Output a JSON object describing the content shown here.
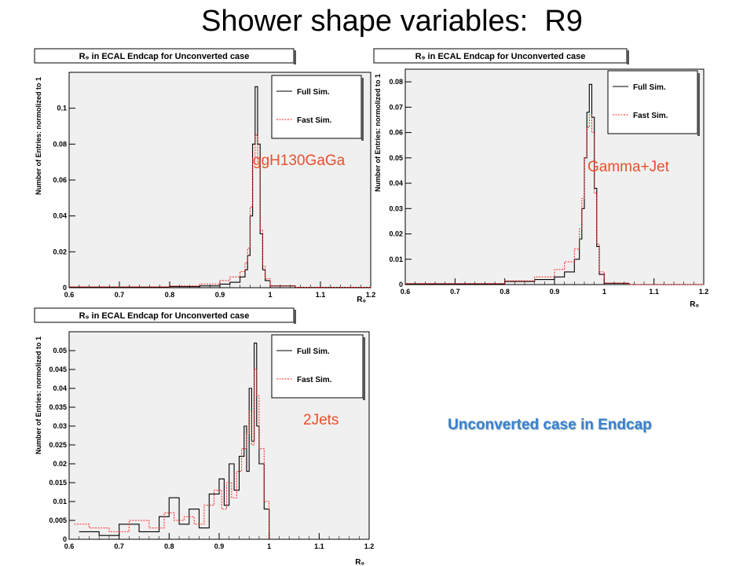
{
  "slide": {
    "title": "Shower shape variables:  R9",
    "caption": "Unconverted case in Endcap"
  },
  "colors": {
    "full": "#000000",
    "fast": "#ff2020",
    "frame": "#f0f0f0",
    "accent_label": "#e8502a",
    "caption": "#3a7fd1"
  },
  "chart_data": [
    {
      "type": "line",
      "id": "p1",
      "title": "R₉ in ECAL Endcap for Unconverted case",
      "label": "ggH130GaGa",
      "ylabel": "Number of Entries: normolized to 1",
      "xlabel": "R₉",
      "xlim": [
        0.6,
        1.2
      ],
      "ylim": [
        0,
        0.12
      ],
      "yticks": [
        0,
        0.02,
        0.04,
        0.06,
        0.08,
        0.1
      ],
      "ytick_labels": [
        "0",
        "0.02",
        "0.04",
        "0.06",
        "0.08",
        "0.1"
      ],
      "xticks": [
        0.6,
        0.7,
        0.8,
        0.9,
        1.0,
        1.1,
        1.2
      ],
      "xtick_labels": [
        "0.6",
        "0.7",
        "0.8",
        "0.9",
        "1",
        "1.1",
        "1.2"
      ],
      "legend": [
        "Full Sim.",
        "Fast Sim."
      ],
      "series": [
        {
          "name": "Full Sim.",
          "x": [
            0.6,
            0.8,
            0.86,
            0.9,
            0.92,
            0.94,
            0.95,
            0.955,
            0.96,
            0.965,
            0.97,
            0.975,
            0.98,
            0.985,
            0.99,
            1.0,
            1.05,
            1.2
          ],
          "y": [
            0.0003,
            0.0006,
            0.001,
            0.002,
            0.003,
            0.006,
            0.01,
            0.018,
            0.04,
            0.08,
            0.112,
            0.08,
            0.03,
            0.01,
            0.004,
            0.001,
            0.0002,
            0.0
          ]
        },
        {
          "name": "Fast Sim.",
          "x": [
            0.6,
            0.8,
            0.86,
            0.9,
            0.92,
            0.94,
            0.95,
            0.955,
            0.96,
            0.965,
            0.97,
            0.975,
            0.98,
            0.985,
            0.99,
            1.0,
            1.05,
            1.2
          ],
          "y": [
            0.0005,
            0.001,
            0.002,
            0.004,
            0.006,
            0.009,
            0.014,
            0.022,
            0.045,
            0.072,
            0.085,
            0.07,
            0.032,
            0.012,
            0.005,
            0.001,
            0.0002,
            0.0
          ]
        }
      ]
    },
    {
      "type": "line",
      "id": "p2",
      "title": "R₉ in ECAL Endcap for Unconverted case",
      "label": "Gamma+Jet",
      "ylabel": "Number of Entries: normolized to 1",
      "xlabel": "R₉",
      "xlim": [
        0.6,
        1.2
      ],
      "ylim": [
        0,
        0.085
      ],
      "yticks": [
        0,
        0.01,
        0.02,
        0.03,
        0.04,
        0.05,
        0.06,
        0.07,
        0.08
      ],
      "ytick_labels": [
        "0",
        "0.01",
        "0.02",
        "0.03",
        "0.04",
        "0.05",
        "0.06",
        "0.07",
        "0.08"
      ],
      "xticks": [
        0.6,
        0.7,
        0.8,
        0.9,
        1.0,
        1.1,
        1.2
      ],
      "xtick_labels": [
        "0.6",
        "0.7",
        "0.8",
        "0.9",
        "1",
        "1.1",
        "1.2"
      ],
      "legend": [
        "Full Sim.",
        "Fast Sim."
      ],
      "series": [
        {
          "name": "Full Sim.",
          "x": [
            0.6,
            0.8,
            0.86,
            0.9,
            0.92,
            0.94,
            0.95,
            0.955,
            0.96,
            0.965,
            0.97,
            0.975,
            0.98,
            0.985,
            0.99,
            1.0,
            1.05,
            1.2
          ],
          "y": [
            0.0003,
            0.0012,
            0.002,
            0.003,
            0.005,
            0.01,
            0.018,
            0.03,
            0.05,
            0.068,
            0.079,
            0.066,
            0.038,
            0.015,
            0.004,
            0.0005,
            0.0,
            0.0
          ]
        },
        {
          "name": "Fast Sim.",
          "x": [
            0.6,
            0.8,
            0.86,
            0.9,
            0.92,
            0.94,
            0.95,
            0.955,
            0.96,
            0.965,
            0.97,
            0.975,
            0.98,
            0.985,
            0.99,
            1.0,
            1.05,
            1.2
          ],
          "y": [
            0.0004,
            0.0015,
            0.003,
            0.006,
            0.009,
            0.014,
            0.022,
            0.034,
            0.05,
            0.062,
            0.067,
            0.06,
            0.036,
            0.016,
            0.005,
            0.0006,
            0.0,
            0.0
          ]
        }
      ]
    },
    {
      "type": "line",
      "id": "p3",
      "title": "R₉ in ECAL Endcap for Unconverted case",
      "label": "2Jets",
      "ylabel": "Number of Entries: normolized to 1",
      "xlabel": "R₉",
      "xlim": [
        0.6,
        1.2
      ],
      "ylim": [
        0,
        0.055
      ],
      "yticks": [
        0,
        0.005,
        0.01,
        0.015,
        0.02,
        0.025,
        0.03,
        0.035,
        0.04,
        0.045,
        0.05
      ],
      "ytick_labels": [
        "0",
        "0.005",
        "0.01",
        "0.015",
        "0.02",
        "0.025",
        "0.03",
        "0.035",
        "0.04",
        "0.045",
        "0.05"
      ],
      "xticks": [
        0.6,
        0.7,
        0.8,
        0.9,
        1.0,
        1.1,
        1.2
      ],
      "xtick_labels": [
        "0.6",
        "0.7",
        "0.8",
        "0.9",
        "1",
        "1.1",
        "1.2"
      ],
      "legend": [
        "Full Sim.",
        "Fast Sim."
      ],
      "series": [
        {
          "name": "Full Sim.",
          "x": [
            0.62,
            0.66,
            0.7,
            0.74,
            0.78,
            0.8,
            0.82,
            0.84,
            0.86,
            0.88,
            0.9,
            0.91,
            0.92,
            0.93,
            0.94,
            0.95,
            0.955,
            0.96,
            0.965,
            0.97,
            0.975,
            0.98,
            0.99,
            1.0
          ],
          "y": [
            0.002,
            0.001,
            0.004,
            0.002,
            0.006,
            0.011,
            0.004,
            0.008,
            0.003,
            0.012,
            0.016,
            0.009,
            0.02,
            0.013,
            0.022,
            0.03,
            0.018,
            0.04,
            0.026,
            0.052,
            0.03,
            0.02,
            0.008,
            0.0
          ]
        },
        {
          "name": "Fast Sim.",
          "x": [
            0.61,
            0.64,
            0.68,
            0.72,
            0.76,
            0.79,
            0.81,
            0.83,
            0.85,
            0.87,
            0.89,
            0.905,
            0.915,
            0.925,
            0.935,
            0.945,
            0.955,
            0.96,
            0.965,
            0.97,
            0.975,
            0.98,
            0.99,
            1.0
          ],
          "y": [
            0.004,
            0.003,
            0.002,
            0.005,
            0.003,
            0.007,
            0.005,
            0.006,
            0.004,
            0.009,
            0.013,
            0.008,
            0.015,
            0.011,
            0.018,
            0.024,
            0.028,
            0.034,
            0.025,
            0.045,
            0.038,
            0.024,
            0.01,
            0.0
          ]
        }
      ]
    }
  ]
}
